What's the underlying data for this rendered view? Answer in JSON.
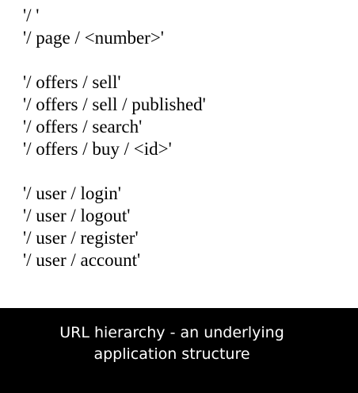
{
  "routes": {
    "groups": [
      [
        "'/ '",
        "'/ page / <number>'"
      ],
      [
        "'/ offers / sell'",
        "'/ offers / sell / published'",
        "'/ offers / search'",
        "'/ offers / buy / <id>'"
      ],
      [
        "'/ user / login'",
        "'/ user / logout'",
        "'/ user / register'",
        "'/ user / account'"
      ]
    ]
  },
  "caption": {
    "line1": "URL hierarchy - an underlying",
    "line2": "application structure"
  },
  "colors": {
    "background": "#ffffff",
    "caption_background": "#000000",
    "caption_text": "#ffffff",
    "text": "#000000"
  }
}
